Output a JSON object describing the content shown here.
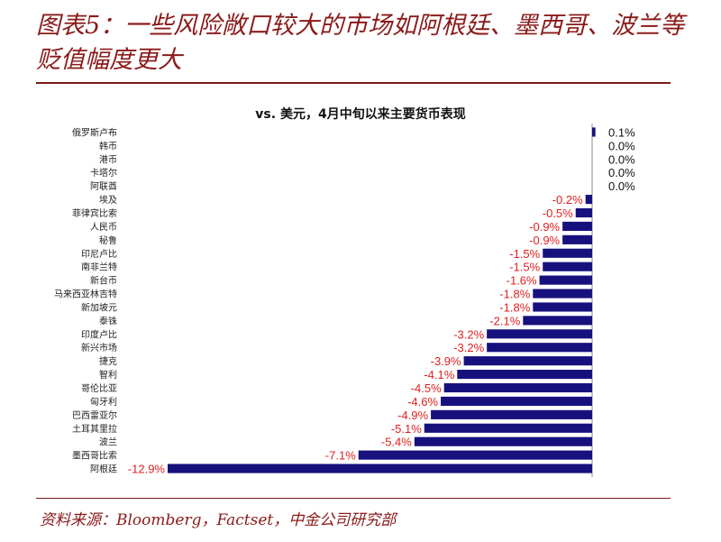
{
  "header": {
    "title": "图表5：一些风险敞口较大的市场如阿根廷、墨西哥、波兰等贬值幅度更大"
  },
  "footer": {
    "source": "资料来源：Bloomberg，Factset，中金公司研究部"
  },
  "colors": {
    "bar": "#17117e",
    "negative_label": "#e02020",
    "positive_label": "#111111",
    "title": "#8b1a1a"
  },
  "chart_data": {
    "type": "bar",
    "orientation": "horizontal",
    "title": "vs. 美元，4月中旬以来主要货币表现",
    "categories": [
      "俄罗斯卢布",
      "韩币",
      "港币",
      "卡塔尔",
      "阿联酋",
      "埃及",
      "菲律宾比索",
      "人民币",
      "秘鲁",
      "印尼卢比",
      "南非兰特",
      "新台币",
      "马来西亚林吉特",
      "新加坡元",
      "泰铢",
      "印度卢比",
      "新兴市场",
      "捷克",
      "智利",
      "哥伦比亚",
      "匈牙利",
      "巴西雷亚尔",
      "土耳其里拉",
      "波兰",
      "墨西哥比索",
      "阿根廷"
    ],
    "values": [
      0.1,
      0.0,
      0.0,
      0.0,
      0.0,
      -0.2,
      -0.5,
      -0.9,
      -0.9,
      -1.5,
      -1.5,
      -1.6,
      -1.8,
      -1.8,
      -2.1,
      -3.2,
      -3.2,
      -3.9,
      -4.1,
      -4.5,
      -4.6,
      -4.9,
      -5.1,
      -5.4,
      -7.1,
      -12.9
    ],
    "labels": [
      "0.1%",
      "0.0%",
      "0.0%",
      "0.0%",
      "0.0%",
      "-0.2%",
      "-0.5%",
      "-0.9%",
      "-0.9%",
      "-1.5%",
      "-1.5%",
      "-1.6%",
      "-1.8%",
      "-1.8%",
      "-2.1%",
      "-3.2%",
      "-3.2%",
      "-3.9%",
      "-4.1%",
      "-4.5%",
      "-4.6%",
      "-4.9%",
      "-5.1%",
      "-5.4%",
      "-7.1%",
      "-12.9%"
    ],
    "unit": "%",
    "xlim": [
      -12.9,
      0.1
    ],
    "grid": false,
    "legend": "none"
  }
}
